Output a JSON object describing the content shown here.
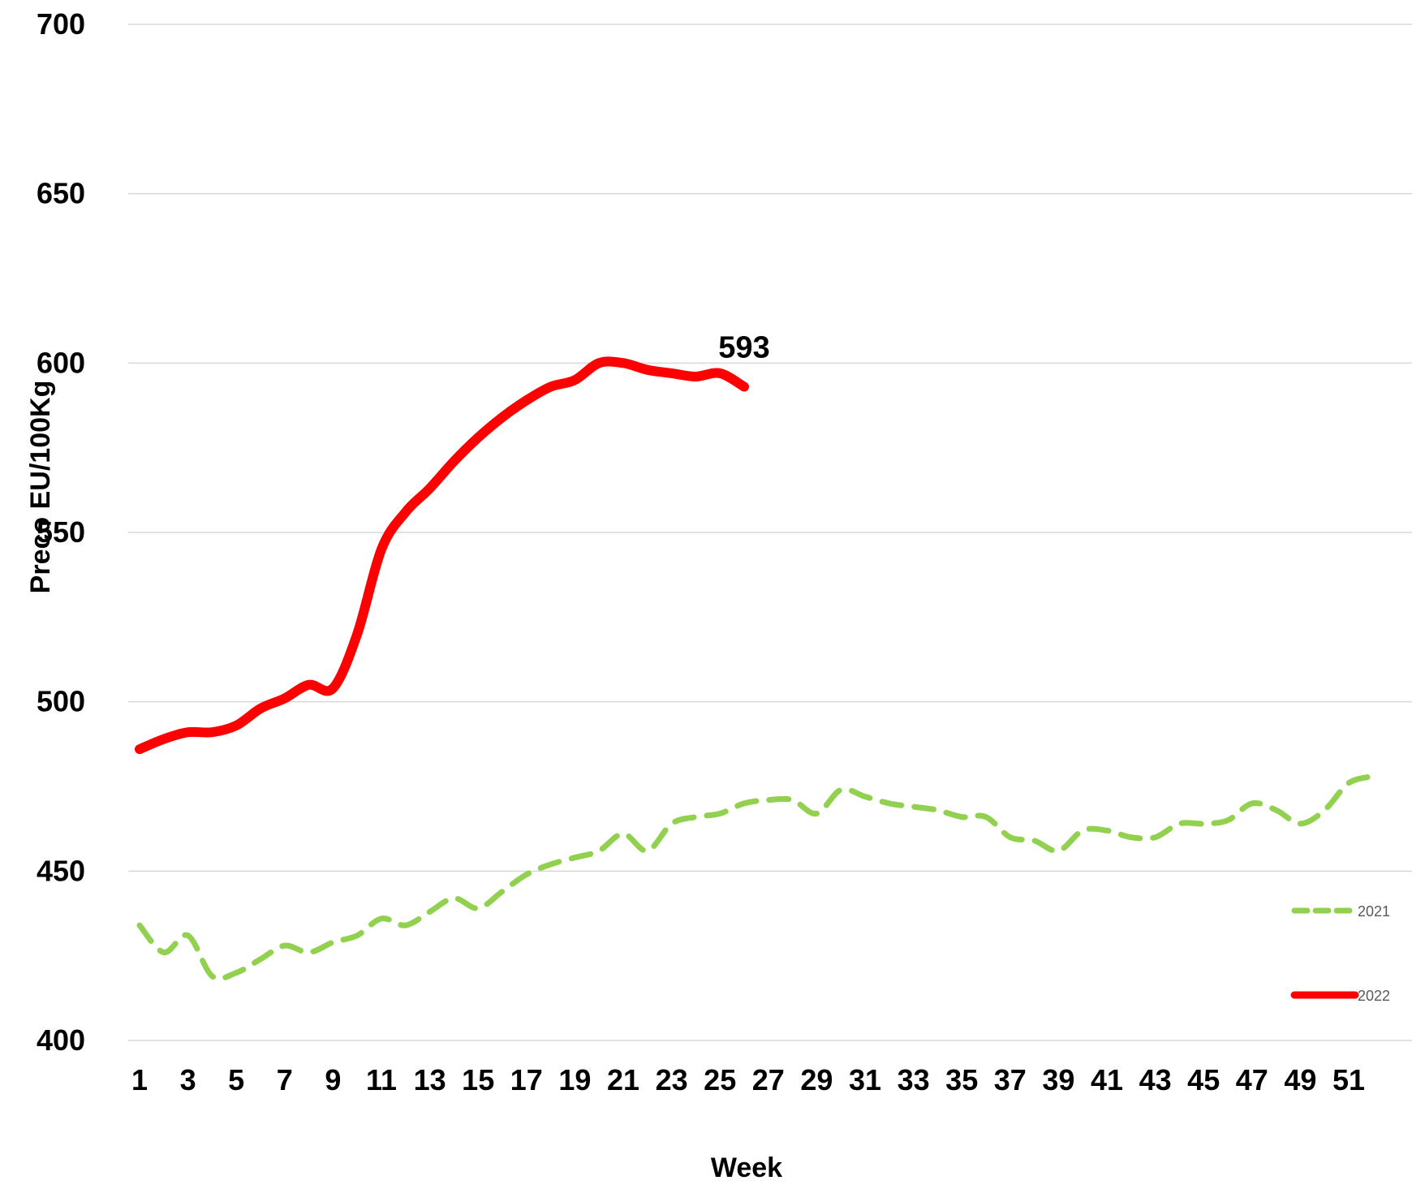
{
  "chart_data": {
    "type": "line",
    "title": "",
    "xlabel": "Week",
    "ylabel": "Preco EU/100Kg",
    "ylim": [
      400,
      700
    ],
    "yticks": [
      400,
      450,
      500,
      550,
      600,
      650,
      700
    ],
    "xlim": [
      1,
      52
    ],
    "xticks": [
      1,
      3,
      5,
      7,
      9,
      11,
      13,
      15,
      17,
      19,
      21,
      23,
      25,
      27,
      29,
      31,
      33,
      35,
      37,
      39,
      41,
      43,
      45,
      47,
      49,
      51
    ],
    "grid": true,
    "legend_position": "bottom-right",
    "series": [
      {
        "name": "2021",
        "color": "#92d050",
        "style": "dashed",
        "x": [
          1,
          2,
          3,
          4,
          5,
          6,
          7,
          8,
          9,
          10,
          11,
          12,
          13,
          14,
          15,
          16,
          17,
          18,
          19,
          20,
          21,
          22,
          23,
          24,
          25,
          26,
          27,
          28,
          29,
          30,
          31,
          32,
          33,
          34,
          35,
          36,
          37,
          38,
          39,
          40,
          41,
          42,
          43,
          44,
          45,
          46,
          47,
          48,
          49,
          50,
          51,
          52
        ],
        "values": [
          434,
          426,
          431,
          419,
          420,
          424,
          428,
          426,
          429,
          431,
          436,
          434,
          438,
          442,
          439,
          444,
          449,
          452,
          454,
          456,
          461,
          456,
          464,
          466,
          467,
          470,
          471,
          471,
          467,
          474,
          472,
          470,
          469,
          468,
          466,
          466,
          460,
          459,
          456,
          462,
          462,
          460,
          460,
          464,
          464,
          465,
          470,
          468,
          464,
          468,
          476,
          478
        ]
      },
      {
        "name": "2022",
        "color": "#ff0000",
        "style": "solid",
        "x": [
          1,
          2,
          3,
          4,
          5,
          6,
          7,
          8,
          9,
          10,
          11,
          12,
          13,
          14,
          15,
          16,
          17,
          18,
          19,
          20,
          21,
          22,
          23,
          24,
          25,
          26
        ],
        "values": [
          486,
          489,
          491,
          491,
          493,
          498,
          501,
          505,
          504,
          520,
          545,
          556,
          563,
          571,
          578,
          584,
          589,
          593,
          595,
          600,
          600,
          598,
          597,
          596,
          597,
          593
        ]
      }
    ],
    "annotations": [
      {
        "text": "593",
        "x": 26,
        "y": 593
      }
    ]
  }
}
